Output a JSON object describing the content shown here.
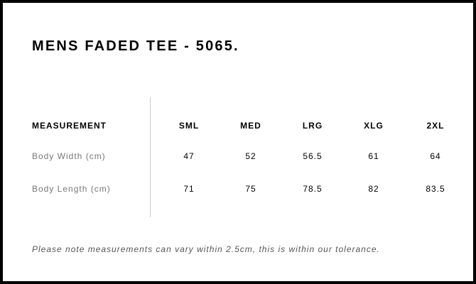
{
  "title": "MENS FADED TEE - 5065.",
  "table": {
    "header": [
      "MEASUREMENT",
      "SML",
      "MED",
      "LRG",
      "XLG",
      "2XL"
    ],
    "rows": [
      {
        "label": "Body Width (cm)",
        "values": [
          "47",
          "52",
          "56.5",
          "61",
          "64"
        ]
      },
      {
        "label": "Body Length (cm)",
        "values": [
          "71",
          "75",
          "78.5",
          "82",
          "83.5"
        ]
      }
    ]
  },
  "note": "Please note measurements can vary within 2.5cm, this is within our tolerance."
}
